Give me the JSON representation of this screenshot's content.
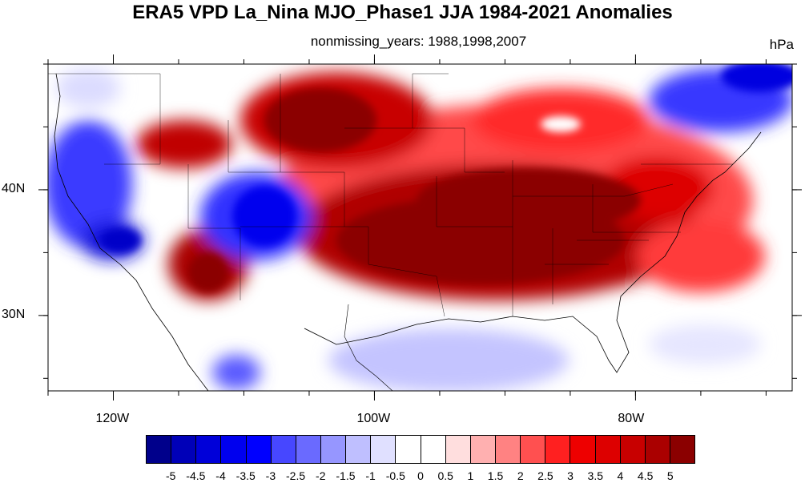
{
  "title": "ERA5 VPD La_Nina MJO_Phase1 JJA 1984-2021 Anomalies",
  "subtitle": "nonmissing_years: 1988,1998,2007",
  "units": "hPa",
  "map": {
    "lon_range": [
      -125,
      -68
    ],
    "lat_range": [
      24,
      50
    ],
    "x_ticks": [
      {
        "label": "120W",
        "lon": -120
      },
      {
        "label": "100W",
        "lon": -100
      },
      {
        "label": "80W",
        "lon": -80
      }
    ],
    "y_ticks": [
      {
        "label": "40N",
        "lat": 40
      },
      {
        "label": "30N",
        "lat": 30
      }
    ]
  },
  "colorbar": {
    "colors": [
      "#00008b",
      "#0000b8",
      "#0000d9",
      "#0000ee",
      "#0000ff",
      "#4747ff",
      "#6a6aff",
      "#9696ff",
      "#bfbfff",
      "#e0e0ff",
      "#ffffff",
      "#ffffff",
      "#ffdede",
      "#ffb0b0",
      "#ff8282",
      "#ff5050",
      "#ff2020",
      "#ee0000",
      "#dd0000",
      "#c80000",
      "#aa0000",
      "#8b0000"
    ],
    "labels": [
      "-5",
      "-4.5",
      "-4",
      "-3.5",
      "-3",
      "-2.5",
      "-2",
      "-1.5",
      "-1",
      "-0.5",
      "0",
      "0.5",
      "1",
      "1.5",
      "2",
      "2.5",
      "3",
      "3.5",
      "4",
      "4.5",
      "5"
    ]
  }
}
